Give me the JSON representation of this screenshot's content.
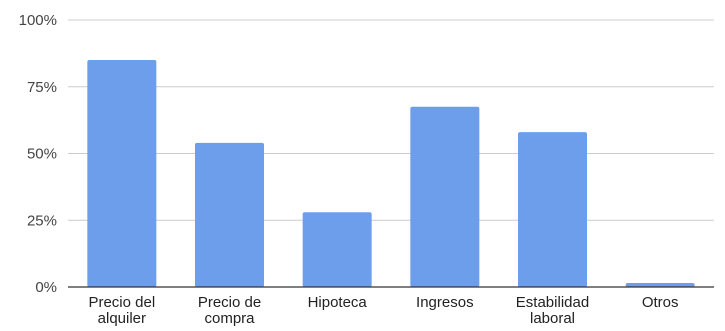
{
  "chart_data": {
    "type": "bar",
    "categories": [
      [
        "Precio del",
        "alquiler"
      ],
      [
        "Precio de",
        "compra"
      ],
      [
        "Hipoteca"
      ],
      [
        "Ingresos"
      ],
      [
        "Estabilidad",
        "laboral"
      ],
      [
        "Otros"
      ]
    ],
    "values": [
      85,
      54,
      28,
      67.5,
      58,
      1.5
    ],
    "ylim": [
      0,
      100
    ],
    "yticks": [
      0,
      25,
      50,
      75,
      100
    ],
    "ytick_labels": [
      "0%",
      "25%",
      "50%",
      "75%",
      "100%"
    ],
    "grid": true,
    "bar_color": "#6d9eeb",
    "title": "",
    "xlabel": "",
    "ylabel": ""
  }
}
